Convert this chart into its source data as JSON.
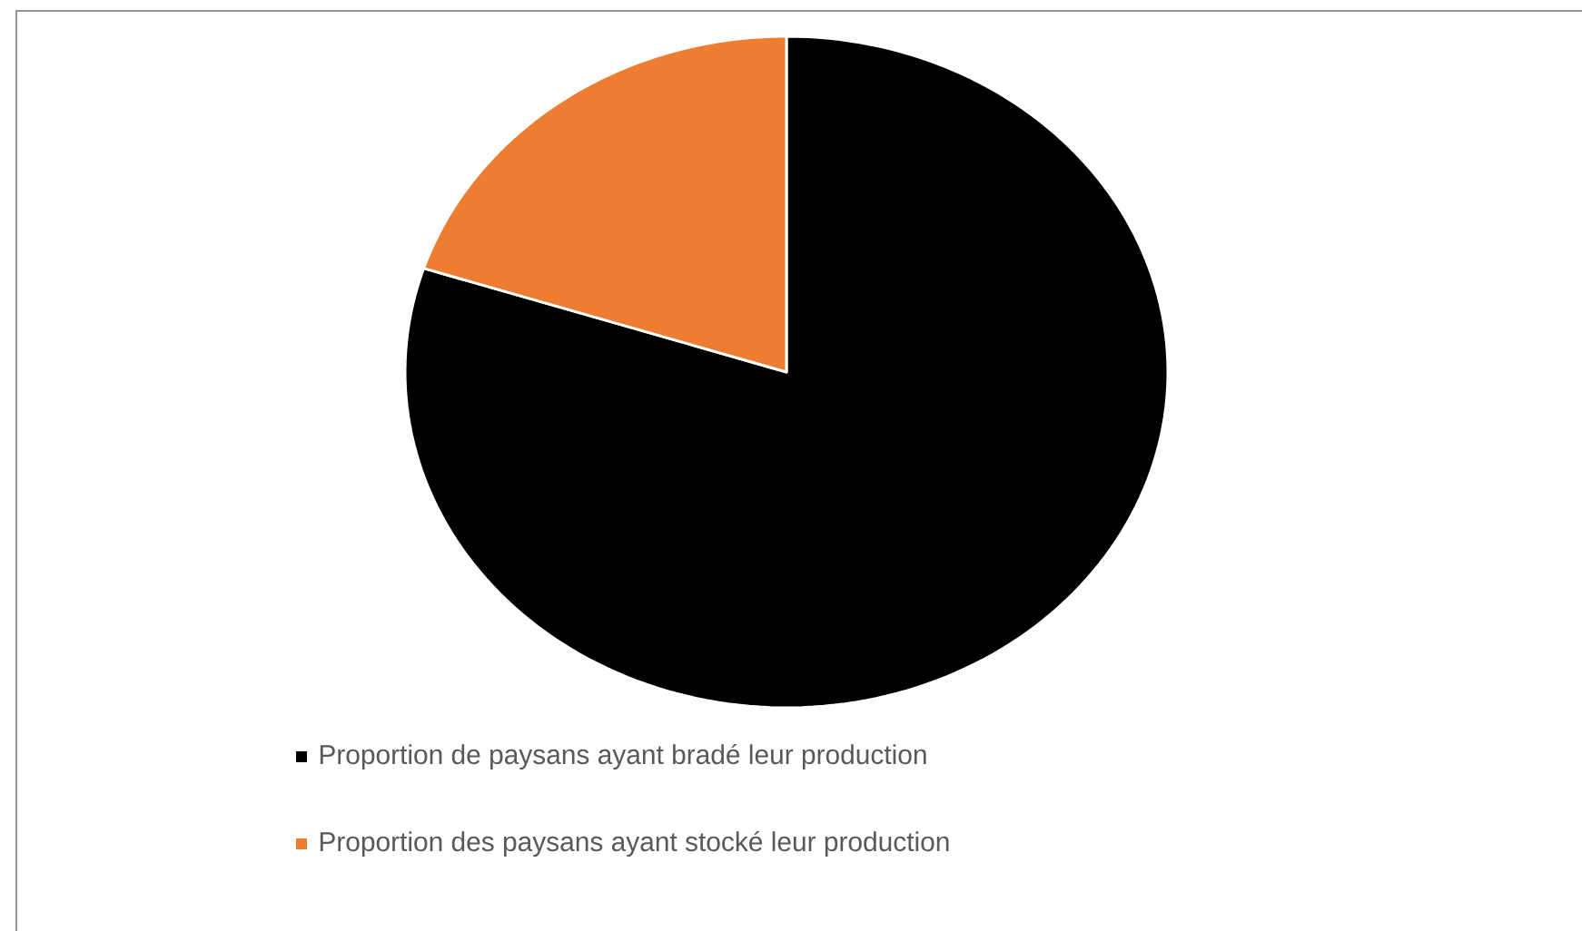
{
  "chart_data": {
    "type": "pie",
    "categories": [
      "Proportion de paysans ayant bradé leur production",
      "Proportion des paysans ayant stocké leur production"
    ],
    "values": [
      80,
      20
    ],
    "colors": [
      "#000000",
      "#ed7d31"
    ],
    "legend": "bottom"
  }
}
